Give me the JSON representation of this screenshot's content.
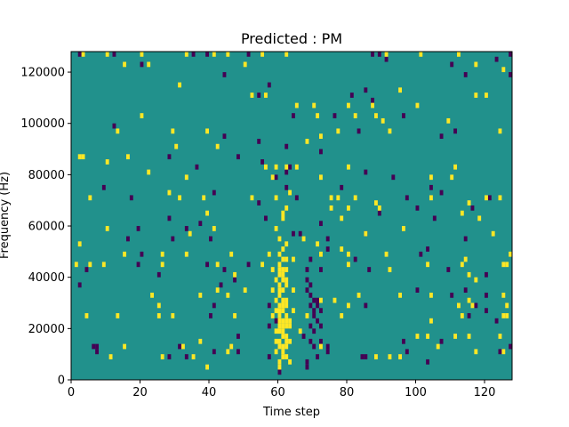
{
  "chart_data": {
    "type": "heatmap",
    "title": "Predicted : PM",
    "xlabel": "Time step",
    "ylabel": "Frequency (Hz)",
    "xlim": [
      0,
      128
    ],
    "ylim": [
      0,
      128000
    ],
    "x_ticks": [
      0,
      20,
      40,
      60,
      80,
      100,
      120
    ],
    "x_tick_labels": [
      "0",
      "20",
      "40",
      "60",
      "80",
      "100",
      "120"
    ],
    "y_ticks": [
      0,
      20000,
      40000,
      60000,
      80000,
      100000,
      120000
    ],
    "y_tick_labels": [
      "0",
      "20000",
      "40000",
      "60000",
      "80000",
      "100000",
      "120000"
    ],
    "grid": false,
    "colormap": "viridis",
    "value_levels": [
      -1,
      0,
      1
    ],
    "colors": {
      "low": "#440154",
      "mid": "#21918c",
      "high": "#fde725"
    },
    "background_value": 0,
    "cell_height_hz": 2000,
    "high_cells": [
      [
        3,
        127000
      ],
      [
        10,
        127000
      ],
      [
        20,
        127000
      ],
      [
        33,
        127000
      ],
      [
        41,
        127000
      ],
      [
        45,
        127000
      ],
      [
        55,
        127000
      ],
      [
        62,
        127000
      ],
      [
        91,
        127000
      ],
      [
        101,
        127000
      ],
      [
        112,
        127000
      ],
      [
        15,
        123000
      ],
      [
        22,
        123000
      ],
      [
        50,
        123000
      ],
      [
        117,
        123000
      ],
      [
        125,
        121000
      ],
      [
        31,
        115000
      ],
      [
        52,
        111000
      ],
      [
        56,
        111000
      ],
      [
        95,
        113000
      ],
      [
        117,
        111000
      ],
      [
        120,
        111000
      ],
      [
        65,
        107000
      ],
      [
        70,
        107000
      ],
      [
        80,
        107000
      ],
      [
        87,
        107000
      ],
      [
        100,
        107000
      ],
      [
        20,
        103000
      ],
      [
        71,
        103000
      ],
      [
        82,
        103000
      ],
      [
        88,
        103000
      ],
      [
        90,
        101000
      ],
      [
        109,
        101000
      ],
      [
        13,
        97000
      ],
      [
        29,
        97000
      ],
      [
        39,
        97000
      ],
      [
        77,
        97000
      ],
      [
        92,
        97000
      ],
      [
        124,
        97000
      ],
      [
        68,
        93000
      ],
      [
        72,
        95000
      ],
      [
        42,
        91000
      ],
      [
        30,
        91000
      ],
      [
        2,
        87000
      ],
      [
        3,
        87000
      ],
      [
        16,
        87000
      ],
      [
        10,
        85000
      ],
      [
        56,
        83000
      ],
      [
        59,
        83000
      ],
      [
        62,
        83000
      ],
      [
        65,
        83000
      ],
      [
        80,
        83000
      ],
      [
        111,
        83000
      ],
      [
        22,
        81000
      ],
      [
        33,
        79000
      ],
      [
        58,
        79000
      ],
      [
        72,
        79000
      ],
      [
        104,
        79000
      ],
      [
        110,
        79000
      ],
      [
        5,
        71000
      ],
      [
        28,
        73000
      ],
      [
        31,
        71000
      ],
      [
        38,
        71000
      ],
      [
        52,
        71000
      ],
      [
        59,
        71000
      ],
      [
        63,
        73000
      ],
      [
        75,
        71000
      ],
      [
        77,
        71000
      ],
      [
        82,
        71000
      ],
      [
        104,
        71000
      ],
      [
        115,
        69000
      ],
      [
        120,
        71000
      ],
      [
        124,
        71000
      ],
      [
        62,
        67000
      ],
      [
        75,
        67000
      ],
      [
        80,
        67000
      ],
      [
        88,
        69000
      ],
      [
        89,
        67000
      ],
      [
        61,
        65000
      ],
      [
        61,
        63000
      ],
      [
        78,
        63000
      ],
      [
        39,
        65000
      ],
      [
        113,
        65000
      ],
      [
        118,
        63000
      ],
      [
        10,
        59000
      ],
      [
        34,
        57000
      ],
      [
        41,
        59000
      ],
      [
        59,
        59000
      ],
      [
        85,
        57000
      ],
      [
        96,
        59000
      ],
      [
        122,
        57000
      ],
      [
        2,
        53000
      ],
      [
        60,
        55000
      ],
      [
        61,
        51000
      ],
      [
        62,
        53000
      ],
      [
        67,
        55000
      ],
      [
        71,
        53000
      ],
      [
        15,
        49000
      ],
      [
        26,
        49000
      ],
      [
        33,
        49000
      ],
      [
        46,
        49000
      ],
      [
        57,
        49000
      ],
      [
        64,
        47000
      ],
      [
        72,
        49000
      ],
      [
        78,
        51000
      ],
      [
        80,
        49000
      ],
      [
        91,
        49000
      ],
      [
        114,
        47000
      ],
      [
        127,
        49000
      ],
      [
        1,
        45000
      ],
      [
        5,
        45000
      ],
      [
        9,
        45000
      ],
      [
        26,
        45000
      ],
      [
        42,
        45000
      ],
      [
        47,
        41000
      ],
      [
        55,
        45000
      ],
      [
        58,
        43000
      ],
      [
        60,
        45000
      ],
      [
        60,
        41000
      ],
      [
        61,
        39000
      ],
      [
        62,
        43000
      ],
      [
        80,
        45000
      ],
      [
        92,
        43000
      ],
      [
        103,
        45000
      ],
      [
        113,
        45000
      ],
      [
        115,
        41000
      ],
      [
        117,
        39000
      ],
      [
        125,
        45000
      ],
      [
        126,
        45000
      ],
      [
        23,
        33000
      ],
      [
        37,
        33000
      ],
      [
        42,
        35000
      ],
      [
        45,
        33000
      ],
      [
        50,
        35000
      ],
      [
        58,
        35000
      ],
      [
        59,
        31000
      ],
      [
        60,
        33000
      ],
      [
        61,
        35000
      ],
      [
        62,
        29000
      ],
      [
        64,
        35000
      ],
      [
        72,
        31000
      ],
      [
        76,
        31000
      ],
      [
        83,
        33000
      ],
      [
        95,
        33000
      ],
      [
        104,
        33000
      ],
      [
        112,
        29000
      ],
      [
        115,
        31000
      ],
      [
        116,
        29000
      ],
      [
        125,
        33000
      ],
      [
        25,
        29000
      ],
      [
        60,
        29000
      ],
      [
        61,
        27000
      ],
      [
        64,
        27000
      ],
      [
        80,
        29000
      ],
      [
        126,
        29000
      ],
      [
        4,
        25000
      ],
      [
        13,
        25000
      ],
      [
        25,
        25000
      ],
      [
        29,
        25000
      ],
      [
        47,
        25000
      ],
      [
        58,
        25000
      ],
      [
        60,
        23000
      ],
      [
        63,
        23000
      ],
      [
        68,
        25000
      ],
      [
        78,
        25000
      ],
      [
        104,
        23000
      ],
      [
        113,
        25000
      ],
      [
        125,
        25000
      ],
      [
        126,
        25000
      ],
      [
        60,
        19000
      ],
      [
        61,
        17000
      ],
      [
        63,
        21000
      ],
      [
        66,
        19000
      ],
      [
        100,
        17000
      ],
      [
        103,
        17000
      ],
      [
        111,
        17000
      ],
      [
        115,
        17000
      ],
      [
        124,
        17000
      ],
      [
        60,
        13000
      ],
      [
        61,
        11000
      ],
      [
        62,
        9000
      ],
      [
        63,
        15000
      ],
      [
        72,
        13000
      ],
      [
        88,
        9000
      ],
      [
        92,
        9000
      ],
      [
        95,
        9000
      ],
      [
        32,
        13000
      ],
      [
        46,
        13000
      ],
      [
        15,
        13000
      ],
      [
        37,
        15000
      ],
      [
        106,
        13000
      ],
      [
        117,
        11000
      ],
      [
        125,
        11000
      ],
      [
        11,
        9000
      ],
      [
        26,
        9000
      ],
      [
        35,
        9000
      ],
      [
        45,
        11000
      ],
      [
        60,
        7000
      ],
      [
        60,
        5000
      ],
      [
        63,
        7000
      ],
      [
        39,
        5000
      ],
      [
        59,
        11000
      ],
      [
        61,
        13000
      ],
      [
        62,
        17000
      ],
      [
        59,
        15000
      ],
      [
        60,
        27000
      ],
      [
        62,
        31000
      ],
      [
        59,
        39000
      ],
      [
        61,
        43000
      ],
      [
        62,
        47000
      ],
      [
        60,
        49000
      ],
      [
        60,
        37000
      ],
      [
        62,
        39000
      ],
      [
        61,
        47000
      ],
      [
        60,
        43000
      ],
      [
        61,
        41000
      ],
      [
        61,
        31000
      ],
      [
        62,
        37000
      ],
      [
        60,
        35000
      ],
      [
        59,
        27000
      ],
      [
        61,
        21000
      ],
      [
        62,
        25000
      ],
      [
        60,
        25000
      ],
      [
        61,
        23000
      ],
      [
        60,
        15000
      ],
      [
        62,
        13000
      ],
      [
        61,
        9000
      ],
      [
        62,
        15000
      ],
      [
        59,
        19000
      ],
      [
        60,
        21000
      ],
      [
        62,
        21000
      ],
      [
        61,
        29000
      ],
      [
        61,
        19000
      ],
      [
        62,
        23000
      ]
    ],
    "low_cells": [
      [
        2,
        127000
      ],
      [
        12,
        127000
      ],
      [
        35,
        127000
      ],
      [
        39,
        127000
      ],
      [
        51,
        127000
      ],
      [
        91,
        125000
      ],
      [
        123,
        125000
      ],
      [
        87,
        127000
      ],
      [
        89,
        127000
      ],
      [
        127,
        127000
      ],
      [
        20,
        123000
      ],
      [
        110,
        123000
      ],
      [
        44,
        119000
      ],
      [
        114,
        119000
      ],
      [
        127,
        119000
      ],
      [
        57,
        115000
      ],
      [
        54,
        111000
      ],
      [
        85,
        113000
      ],
      [
        64,
        103000
      ],
      [
        76,
        103000
      ],
      [
        87,
        109000
      ],
      [
        81,
        111000
      ],
      [
        12,
        99000
      ],
      [
        96,
        103000
      ],
      [
        83,
        97000
      ],
      [
        111,
        97000
      ],
      [
        107,
        95000
      ],
      [
        44,
        95000
      ],
      [
        54,
        93000
      ],
      [
        62,
        91000
      ],
      [
        72,
        89000
      ],
      [
        28,
        87000
      ],
      [
        48,
        87000
      ],
      [
        55,
        85000
      ],
      [
        36,
        83000
      ],
      [
        63,
        83000
      ],
      [
        62,
        81000
      ],
      [
        59,
        79000
      ],
      [
        85,
        81000
      ],
      [
        93,
        79000
      ],
      [
        9,
        75000
      ],
      [
        17,
        71000
      ],
      [
        41,
        73000
      ],
      [
        62,
        75000
      ],
      [
        65,
        71000
      ],
      [
        78,
        75000
      ],
      [
        97,
        71000
      ],
      [
        104,
        75000
      ],
      [
        107,
        73000
      ],
      [
        116,
        67000
      ],
      [
        121,
        71000
      ],
      [
        54,
        69000
      ],
      [
        100,
        67000
      ],
      [
        28,
        63000
      ],
      [
        89,
        65000
      ],
      [
        105,
        63000
      ],
      [
        19,
        59000
      ],
      [
        33,
        59000
      ],
      [
        37,
        61000
      ],
      [
        56,
        63000
      ],
      [
        72,
        61000
      ],
      [
        66,
        57000
      ],
      [
        16,
        55000
      ],
      [
        29,
        55000
      ],
      [
        40,
        55000
      ],
      [
        64,
        57000
      ],
      [
        74,
        55000
      ],
      [
        74,
        51000
      ],
      [
        85,
        57000
      ],
      [
        20,
        49000
      ],
      [
        103,
        51000
      ],
      [
        114,
        55000
      ],
      [
        4,
        43000
      ],
      [
        19,
        45000
      ],
      [
        39,
        45000
      ],
      [
        44,
        43000
      ],
      [
        51,
        45000
      ],
      [
        69,
        47000
      ],
      [
        82,
        47000
      ],
      [
        101,
        49000
      ],
      [
        68,
        43000
      ],
      [
        68,
        39000
      ],
      [
        69,
        37000
      ],
      [
        72,
        43000
      ],
      [
        86,
        43000
      ],
      [
        109,
        43000
      ],
      [
        120,
        41000
      ],
      [
        2,
        37000
      ],
      [
        25,
        41000
      ],
      [
        43,
        37000
      ],
      [
        47,
        39000
      ],
      [
        69,
        33000
      ],
      [
        70,
        31000
      ],
      [
        71,
        29000
      ],
      [
        72,
        27000
      ],
      [
        70,
        25000
      ],
      [
        71,
        23000
      ],
      [
        72,
        21000
      ],
      [
        70,
        27000
      ],
      [
        69,
        29000
      ],
      [
        71,
        31000
      ],
      [
        68,
        35000
      ],
      [
        100,
        35000
      ],
      [
        110,
        33000
      ],
      [
        114,
        35000
      ],
      [
        120,
        33000
      ],
      [
        41,
        29000
      ],
      [
        57,
        29000
      ],
      [
        85,
        29000
      ],
      [
        117,
        29000
      ],
      [
        115,
        25000
      ],
      [
        120,
        27000
      ],
      [
        40,
        25000
      ],
      [
        57,
        21000
      ],
      [
        59,
        23000
      ],
      [
        69,
        21000
      ],
      [
        70,
        19000
      ],
      [
        67,
        17000
      ],
      [
        74,
        13000
      ],
      [
        69,
        15000
      ],
      [
        72,
        15000
      ],
      [
        70,
        13000
      ],
      [
        74,
        11000
      ],
      [
        7,
        13000
      ],
      [
        41,
        11000
      ],
      [
        48,
        17000
      ],
      [
        107,
        15000
      ],
      [
        123,
        23000
      ],
      [
        127,
        13000
      ],
      [
        124,
        11000
      ],
      [
        7,
        11000
      ],
      [
        6,
        13000
      ],
      [
        33,
        9000
      ],
      [
        28,
        9000
      ],
      [
        48,
        11000
      ],
      [
        57,
        9000
      ],
      [
        68,
        7000
      ],
      [
        68,
        5000
      ],
      [
        71,
        9000
      ],
      [
        84,
        9000
      ],
      [
        85,
        9000
      ],
      [
        97,
        11000
      ],
      [
        103,
        7000
      ],
      [
        96,
        15000
      ],
      [
        60,
        3000
      ],
      [
        31,
        13000
      ]
    ]
  }
}
